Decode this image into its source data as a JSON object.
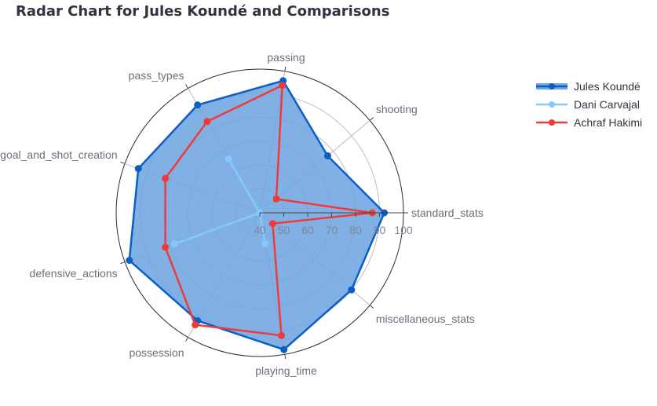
{
  "chart_data": {
    "type": "radar",
    "title": "Radar Chart for Jules Koundé and Comparisons",
    "axes": [
      "standard_stats",
      "shooting",
      "passing",
      "pass_types",
      "goal_and_shot_creation",
      "defensive_actions",
      "possession",
      "playing_time",
      "miscellaneous_stats"
    ],
    "radial_range": [
      40,
      100
    ],
    "radial_ticks": [
      40,
      50,
      60,
      70,
      80,
      90,
      100
    ],
    "grid": true,
    "legend_position": "top-right",
    "series": [
      {
        "name": "Jules Koundé",
        "color": "#0b5fc4",
        "fill": "#6fa6e0",
        "filled": true,
        "values": [
          92,
          77,
          96,
          92,
          94,
          98,
          92,
          98,
          90
        ]
      },
      {
        "name": "Dani Carvajal",
        "color": "#83c9ff",
        "filled": false,
        "values": [
          40,
          40,
          40,
          66,
          40,
          78,
          40,
          53,
          40
        ]
      },
      {
        "name": "Achraf Hakimi",
        "color": "#f03a3a",
        "filled": false,
        "values": [
          87,
          49,
          94,
          84,
          82,
          82,
          94,
          92,
          47
        ]
      }
    ]
  }
}
